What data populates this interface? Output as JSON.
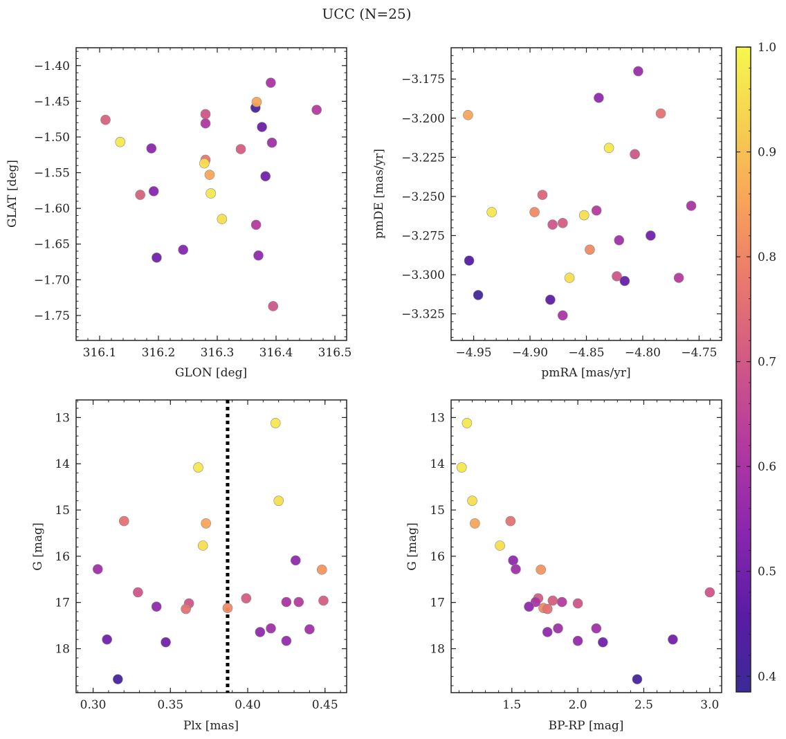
{
  "title": "UCC (N=25)",
  "chart_data": [
    {
      "type": "scatter",
      "xlabel": "GLON [deg]",
      "ylabel": "GLAT [deg]",
      "xlim": [
        316.06,
        316.52
      ],
      "ylim": [
        -1.785,
        -1.375
      ],
      "xticks": [
        316.1,
        316.2,
        316.3,
        316.4,
        316.5
      ],
      "xtick_labels": [
        "316.1",
        "316.2",
        "316.3",
        "316.4",
        "316.5"
      ],
      "yticks": [
        -1.4,
        -1.45,
        -1.5,
        -1.55,
        -1.6,
        -1.65,
        -1.7,
        -1.75
      ],
      "ytick_labels": [
        "−1.40",
        "−1.45",
        "−1.50",
        "−1.55",
        "−1.60",
        "−1.65",
        "−1.70",
        "−1.75"
      ],
      "points": [
        {
          "x": 316.11,
          "y": -1.476,
          "c": 0.71
        },
        {
          "x": 316.135,
          "y": -1.507,
          "c": 0.97
        },
        {
          "x": 316.188,
          "y": -1.516,
          "c": 0.54
        },
        {
          "x": 316.192,
          "y": -1.576,
          "c": 0.53
        },
        {
          "x": 316.169,
          "y": -1.581,
          "c": 0.71
        },
        {
          "x": 316.197,
          "y": -1.669,
          "c": 0.5
        },
        {
          "x": 316.242,
          "y": -1.658,
          "c": 0.53
        },
        {
          "x": 316.28,
          "y": -1.468,
          "c": 0.68
        },
        {
          "x": 316.28,
          "y": -1.481,
          "c": 0.61
        },
        {
          "x": 316.28,
          "y": -1.532,
          "c": 0.76
        },
        {
          "x": 316.278,
          "y": -1.537,
          "c": 0.95
        },
        {
          "x": 316.287,
          "y": -1.553,
          "c": 0.85
        },
        {
          "x": 316.289,
          "y": -1.579,
          "c": 0.97
        },
        {
          "x": 316.308,
          "y": -1.615,
          "c": 0.95
        },
        {
          "x": 316.34,
          "y": -1.517,
          "c": 0.7
        },
        {
          "x": 316.365,
          "y": -1.459,
          "c": 0.42
        },
        {
          "x": 316.367,
          "y": -1.451,
          "c": 0.85
        },
        {
          "x": 316.366,
          "y": -1.623,
          "c": 0.62
        },
        {
          "x": 316.37,
          "y": -1.666,
          "c": 0.55
        },
        {
          "x": 316.376,
          "y": -1.486,
          "c": 0.49
        },
        {
          "x": 316.382,
          "y": -1.555,
          "c": 0.5
        },
        {
          "x": 316.391,
          "y": -1.424,
          "c": 0.6
        },
        {
          "x": 316.393,
          "y": -1.508,
          "c": 0.58
        },
        {
          "x": 316.395,
          "y": -1.737,
          "c": 0.68
        },
        {
          "x": 316.469,
          "y": -1.462,
          "c": 0.62
        }
      ]
    },
    {
      "type": "scatter",
      "xlabel": "pmRA [mas/yr]",
      "ylabel": "pmDE [mas/yr]",
      "xlim": [
        -4.97,
        -4.73
      ],
      "ylim": [
        -3.342,
        -3.155
      ],
      "xticks": [
        -4.95,
        -4.9,
        -4.85,
        -4.8,
        -4.75
      ],
      "xtick_labels": [
        "−4.95",
        "−4.90",
        "−4.85",
        "−4.80",
        "−4.75"
      ],
      "yticks": [
        -3.175,
        -3.2,
        -3.225,
        -3.25,
        -3.275,
        -3.3,
        -3.325
      ],
      "ytick_labels": [
        "−3.175",
        "−3.200",
        "−3.225",
        "−3.250",
        "−3.275",
        "−3.300",
        "−3.325"
      ],
      "points": [
        {
          "x": -4.955,
          "y": -3.198,
          "c": 0.85
        },
        {
          "x": -4.954,
          "y": -3.291,
          "c": 0.45
        },
        {
          "x": -4.946,
          "y": -3.313,
          "c": 0.4
        },
        {
          "x": -4.934,
          "y": -3.26,
          "c": 0.97
        },
        {
          "x": -4.896,
          "y": -3.26,
          "c": 0.8
        },
        {
          "x": -4.889,
          "y": -3.249,
          "c": 0.72
        },
        {
          "x": -4.882,
          "y": -3.316,
          "c": 0.47
        },
        {
          "x": -4.88,
          "y": -3.268,
          "c": 0.68
        },
        {
          "x": -4.871,
          "y": -3.267,
          "c": 0.7
        },
        {
          "x": -4.871,
          "y": -3.326,
          "c": 0.6
        },
        {
          "x": -4.865,
          "y": -3.302,
          "c": 0.95
        },
        {
          "x": -4.852,
          "y": -3.262,
          "c": 0.95
        },
        {
          "x": -4.847,
          "y": -3.284,
          "c": 0.8
        },
        {
          "x": -4.841,
          "y": -3.259,
          "c": 0.62
        },
        {
          "x": -4.839,
          "y": -3.187,
          "c": 0.55
        },
        {
          "x": -4.83,
          "y": -3.219,
          "c": 0.97
        },
        {
          "x": -4.823,
          "y": -3.301,
          "c": 0.68
        },
        {
          "x": -4.821,
          "y": -3.278,
          "c": 0.58
        },
        {
          "x": -4.816,
          "y": -3.304,
          "c": 0.48
        },
        {
          "x": -4.807,
          "y": -3.223,
          "c": 0.68
        },
        {
          "x": -4.804,
          "y": -3.17,
          "c": 0.57
        },
        {
          "x": -4.784,
          "y": -3.197,
          "c": 0.75
        },
        {
          "x": -4.793,
          "y": -3.275,
          "c": 0.5
        },
        {
          "x": -4.768,
          "y": -3.302,
          "c": 0.62
        },
        {
          "x": -4.757,
          "y": -3.256,
          "c": 0.6
        }
      ]
    },
    {
      "type": "scatter",
      "xlabel": "Plx [mas]",
      "ylabel": "G [mag]",
      "xlim": [
        0.289,
        0.464
      ],
      "ylim": [
        18.95,
        12.62
      ],
      "y_inverted": true,
      "xticks": [
        0.3,
        0.35,
        0.4,
        0.45
      ],
      "xtick_labels": [
        "0.30",
        "0.35",
        "0.40",
        "0.45"
      ],
      "yticks": [
        13,
        14,
        15,
        16,
        17,
        18
      ],
      "ytick_labels": [
        "13",
        "14",
        "15",
        "16",
        "17",
        "18"
      ],
      "vline": 0.387,
      "points": [
        {
          "x": 0.418,
          "y": 13.12,
          "c": 0.97
        },
        {
          "x": 0.368,
          "y": 14.08,
          "c": 0.97
        },
        {
          "x": 0.42,
          "y": 14.8,
          "c": 0.95
        },
        {
          "x": 0.32,
          "y": 15.24,
          "c": 0.75
        },
        {
          "x": 0.373,
          "y": 15.29,
          "c": 0.85
        },
        {
          "x": 0.371,
          "y": 15.77,
          "c": 0.95
        },
        {
          "x": 0.431,
          "y": 16.09,
          "c": 0.55
        },
        {
          "x": 0.303,
          "y": 16.28,
          "c": 0.58
        },
        {
          "x": 0.448,
          "y": 16.29,
          "c": 0.82
        },
        {
          "x": 0.329,
          "y": 16.78,
          "c": 0.68
        },
        {
          "x": 0.399,
          "y": 16.91,
          "c": 0.7
        },
        {
          "x": 0.449,
          "y": 16.96,
          "c": 0.7
        },
        {
          "x": 0.425,
          "y": 16.99,
          "c": 0.6
        },
        {
          "x": 0.433,
          "y": 16.99,
          "c": 0.62
        },
        {
          "x": 0.362,
          "y": 17.02,
          "c": 0.68
        },
        {
          "x": 0.341,
          "y": 17.09,
          "c": 0.55
        },
        {
          "x": 0.387,
          "y": 17.12,
          "c": 0.8
        },
        {
          "x": 0.36,
          "y": 17.14,
          "c": 0.75
        },
        {
          "x": 0.415,
          "y": 17.56,
          "c": 0.58
        },
        {
          "x": 0.44,
          "y": 17.58,
          "c": 0.58
        },
        {
          "x": 0.408,
          "y": 17.64,
          "c": 0.55
        },
        {
          "x": 0.309,
          "y": 17.8,
          "c": 0.5
        },
        {
          "x": 0.425,
          "y": 17.83,
          "c": 0.56
        },
        {
          "x": 0.347,
          "y": 17.86,
          "c": 0.5
        },
        {
          "x": 0.316,
          "y": 18.66,
          "c": 0.42
        }
      ]
    },
    {
      "type": "scatter",
      "xlabel": "BP-RP [mag]",
      "ylabel": "G [mag]",
      "xlim": [
        1.04,
        3.09
      ],
      "ylim": [
        18.95,
        12.62
      ],
      "y_inverted": true,
      "xticks": [
        1.5,
        2.0,
        2.5,
        3.0
      ],
      "xtick_labels": [
        "1.5",
        "2.0",
        "2.5",
        "3.0"
      ],
      "yticks": [
        13,
        14,
        15,
        16,
        17,
        18
      ],
      "ytick_labels": [
        "13",
        "14",
        "15",
        "16",
        "17",
        "18"
      ],
      "points": [
        {
          "x": 1.16,
          "y": 13.12,
          "c": 0.97
        },
        {
          "x": 1.12,
          "y": 14.08,
          "c": 0.97
        },
        {
          "x": 1.2,
          "y": 14.8,
          "c": 0.95
        },
        {
          "x": 1.22,
          "y": 15.29,
          "c": 0.85
        },
        {
          "x": 1.49,
          "y": 15.24,
          "c": 0.75
        },
        {
          "x": 1.41,
          "y": 15.77,
          "c": 0.95
        },
        {
          "x": 1.51,
          "y": 16.09,
          "c": 0.55
        },
        {
          "x": 1.53,
          "y": 16.28,
          "c": 0.58
        },
        {
          "x": 1.72,
          "y": 16.29,
          "c": 0.82
        },
        {
          "x": 1.7,
          "y": 16.91,
          "c": 0.7
        },
        {
          "x": 1.81,
          "y": 16.96,
          "c": 0.7
        },
        {
          "x": 1.68,
          "y": 16.99,
          "c": 0.6
        },
        {
          "x": 1.88,
          "y": 16.99,
          "c": 0.62
        },
        {
          "x": 2.0,
          "y": 17.02,
          "c": 0.68
        },
        {
          "x": 1.63,
          "y": 17.09,
          "c": 0.55
        },
        {
          "x": 1.74,
          "y": 17.12,
          "c": 0.8
        },
        {
          "x": 1.77,
          "y": 17.14,
          "c": 0.75
        },
        {
          "x": 1.85,
          "y": 17.56,
          "c": 0.58
        },
        {
          "x": 2.14,
          "y": 17.56,
          "c": 0.58
        },
        {
          "x": 1.77,
          "y": 17.64,
          "c": 0.55
        },
        {
          "x": 2.0,
          "y": 17.83,
          "c": 0.56
        },
        {
          "x": 2.19,
          "y": 17.86,
          "c": 0.5
        },
        {
          "x": 2.72,
          "y": 17.8,
          "c": 0.5
        },
        {
          "x": 3.0,
          "y": 16.78,
          "c": 0.68
        },
        {
          "x": 2.45,
          "y": 18.66,
          "c": 0.42
        }
      ]
    }
  ],
  "colorbar": {
    "colormap": "plasma",
    "range": [
      0.385,
      1.0
    ],
    "ticks": [
      0.4,
      0.5,
      0.6,
      0.7,
      0.8,
      0.9,
      1.0
    ],
    "tick_labels": [
      "0.4",
      "0.5",
      "0.6",
      "0.7",
      "0.8",
      "0.9",
      "1.0"
    ]
  }
}
